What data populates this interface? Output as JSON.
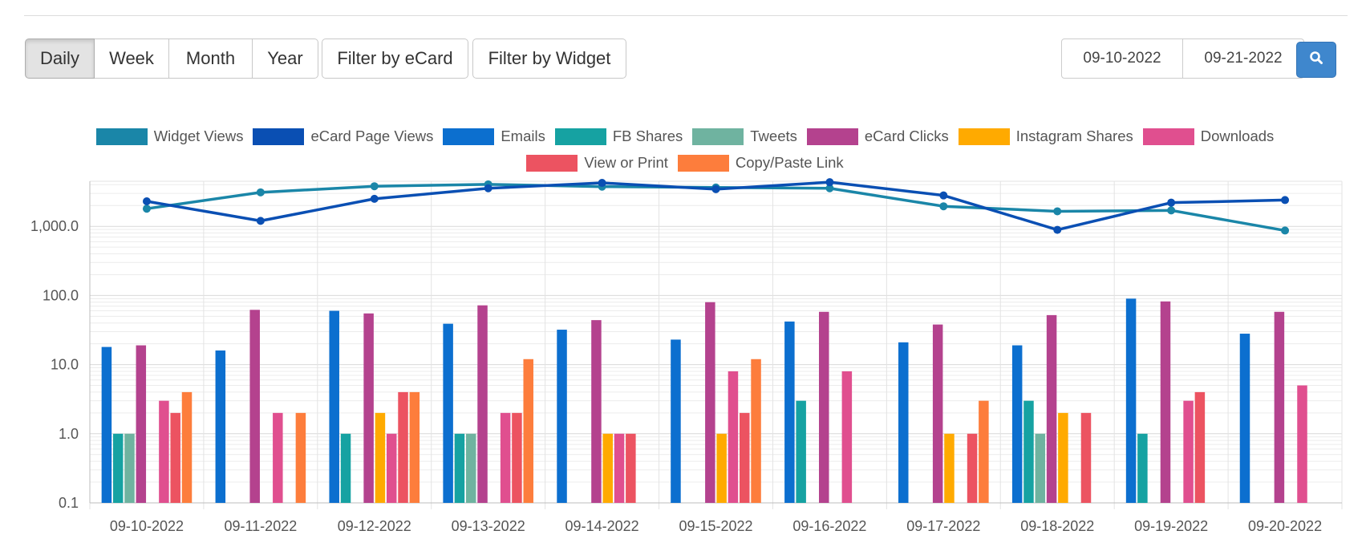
{
  "toolbar": {
    "range_buttons": [
      {
        "label": "Daily",
        "active": true
      },
      {
        "label": "Week",
        "active": false
      },
      {
        "label": "Month",
        "active": false
      },
      {
        "label": "Year",
        "active": false
      }
    ],
    "filter_ecard_label": "Filter by eCard",
    "filter_widget_label": "Filter by Widget",
    "start_date": "09-10-2022",
    "end_date": "09-21-2022",
    "search_icon": "search-icon"
  },
  "chart_data": {
    "type": "bar",
    "y_scale": "log",
    "ylim": [
      0.1,
      5000
    ],
    "y_ticks": [
      "0.1",
      "1.0",
      "10.0",
      "100.0",
      "1,000.0"
    ],
    "grid": true,
    "legend_position": "top",
    "categories": [
      "09-10-2022",
      "09-11-2022",
      "09-12-2022",
      "09-13-2022",
      "09-14-2022",
      "09-15-2022",
      "09-16-2022",
      "09-17-2022",
      "09-18-2022",
      "09-19-2022",
      "09-20-2022"
    ],
    "line_series": [
      {
        "name": "Widget Views",
        "color": "#1a86a8",
        "values": [
          1800,
          3100,
          3800,
          4050,
          3750,
          3650,
          3550,
          1950,
          1650,
          1700,
          870
        ]
      },
      {
        "name": "eCard Page Views",
        "color": "#0a4fb3",
        "values": [
          2300,
          1200,
          2500,
          3550,
          4250,
          3450,
          4350,
          2800,
          890,
          2200,
          2400
        ]
      }
    ],
    "bar_series": [
      {
        "name": "Emails",
        "color": "#0c6fcf",
        "values": [
          18,
          16,
          60,
          39,
          32,
          23,
          42,
          21,
          19,
          90,
          28
        ]
      },
      {
        "name": "FB Shares",
        "color": "#16a2a2",
        "values": [
          1,
          null,
          1,
          1,
          null,
          null,
          3,
          null,
          3,
          1,
          null
        ]
      },
      {
        "name": "Tweets",
        "color": "#6fb3a0",
        "values": [
          1,
          null,
          null,
          1,
          null,
          null,
          null,
          null,
          1,
          null,
          null
        ]
      },
      {
        "name": "eCard Clicks",
        "color": "#b4428e",
        "values": [
          19,
          62,
          55,
          72,
          44,
          80,
          58,
          38,
          52,
          82,
          58
        ]
      },
      {
        "name": "Instagram Shares",
        "color": "#ffaa00",
        "values": [
          null,
          null,
          2,
          null,
          1,
          1,
          null,
          1,
          2,
          null,
          null
        ]
      },
      {
        "name": "Downloads",
        "color": "#e04f8f",
        "values": [
          3,
          2,
          1,
          2,
          1,
          8,
          8,
          null,
          null,
          3,
          5
        ]
      },
      {
        "name": "View or Print",
        "color": "#ec5361",
        "values": [
          2,
          null,
          4,
          2,
          1,
          2,
          null,
          1,
          2,
          4,
          null
        ]
      },
      {
        "name": "Copy/Paste Link",
        "color": "#fd7d3c",
        "values": [
          4,
          2,
          4,
          12,
          null,
          12,
          null,
          3,
          null,
          null,
          null
        ]
      }
    ],
    "legend": [
      {
        "label": "Widget Views",
        "color": "#1a86a8"
      },
      {
        "label": "eCard Page Views",
        "color": "#0a4fb3"
      },
      {
        "label": "Emails",
        "color": "#0c6fcf"
      },
      {
        "label": "FB Shares",
        "color": "#16a2a2"
      },
      {
        "label": "Tweets",
        "color": "#6fb3a0"
      },
      {
        "label": "eCard Clicks",
        "color": "#b4428e"
      },
      {
        "label": "Instagram Shares",
        "color": "#ffaa00"
      },
      {
        "label": "Downloads",
        "color": "#e04f8f"
      },
      {
        "label": "View or Print",
        "color": "#ec5361"
      },
      {
        "label": "Copy/Paste Link",
        "color": "#fd7d3c"
      }
    ]
  }
}
